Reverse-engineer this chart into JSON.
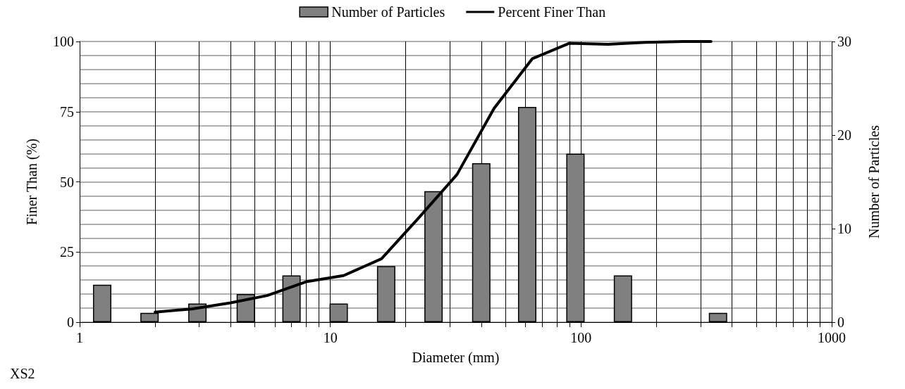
{
  "chart_data": {
    "type": "bar",
    "xlabel": "Diameter (mm)",
    "ylabel": "Finer Than (%)",
    "y2label": "Number of Particles",
    "annotations": [
      "XS2"
    ],
    "series": [
      {
        "name": "Number of Particles",
        "axis": "y2",
        "color": "#808080",
        "x": [
          1.23,
          1.9,
          2.95,
          4.6,
          7,
          10.8,
          16.7,
          25.8,
          40,
          61,
          95,
          147,
          352
        ],
        "values": [
          4,
          1,
          2,
          3,
          5,
          2,
          6,
          14,
          17,
          23,
          18,
          5,
          1
        ]
      },
      {
        "name": "Percent Finer Than",
        "type": "line",
        "color": "#000000",
        "marker": "none",
        "x": [
          2,
          2.8,
          4,
          5.6,
          8,
          11.3,
          16,
          22.6,
          32,
          45,
          64,
          90,
          128,
          180,
          256,
          330
        ],
        "values": [
          3.6,
          4.7,
          6.9,
          9.5,
          14.4,
          16.6,
          22.6,
          37.3,
          52.6,
          76.2,
          93.9,
          99.4,
          99,
          99.7,
          100,
          100
        ]
      }
    ],
    "log": "x",
    "xlim": [
      1,
      1000
    ],
    "xticks": [
      1,
      {
        "value": 2,
        "label": null
      },
      {
        "value": 3,
        "label": null
      },
      {
        "value": 4,
        "label": null
      },
      {
        "value": 5,
        "label": null
      },
      {
        "value": 6,
        "label": null
      },
      {
        "value": 7,
        "label": null
      },
      {
        "value": 8,
        "label": null
      },
      {
        "value": 9,
        "label": null
      },
      10,
      {
        "value": 20,
        "label": null
      },
      {
        "value": 30,
        "label": null
      },
      {
        "value": 40,
        "label": null
      },
      {
        "value": 50,
        "label": null
      },
      {
        "value": 60,
        "label": null
      },
      {
        "value": 70,
        "label": null
      },
      {
        "value": 80,
        "label": null
      },
      {
        "value": 90,
        "label": null
      },
      100,
      {
        "value": 200,
        "label": null
      },
      {
        "value": 300,
        "label": null
      },
      {
        "value": 400,
        "label": null
      },
      {
        "value": 500,
        "label": null
      },
      {
        "value": 600,
        "label": null
      },
      {
        "value": 700,
        "label": null
      },
      {
        "value": 800,
        "label": null
      },
      {
        "value": 900,
        "label": null
      },
      1000
    ],
    "ylim": [
      0,
      100
    ],
    "yticks": [
      0,
      25,
      50,
      75,
      100
    ],
    "y2lim": [
      0,
      30
    ],
    "y2ticks": [
      0,
      10,
      20,
      30
    ],
    "grid": true,
    "legend": "top"
  }
}
